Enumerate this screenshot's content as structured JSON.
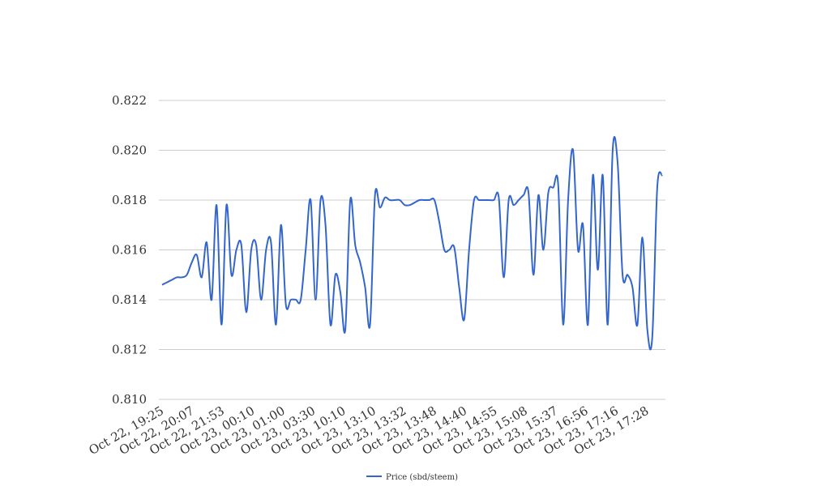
{
  "chart_data": {
    "type": "line",
    "title": "",
    "xlabel": "",
    "ylabel": "",
    "ylim": [
      0.81,
      0.822
    ],
    "yticks": [
      "0.810",
      "0.812",
      "0.814",
      "0.816",
      "0.818",
      "0.820",
      "0.822"
    ],
    "grid": true,
    "legend_position": "bottom",
    "x_tick_labels": [
      "Oct 22, 19:25",
      "Oct 22, 20:07",
      "Oct 22, 21:53",
      "Oct 23, 00:10",
      "Oct 23, 01:00",
      "Oct 23, 03:30",
      "Oct 23, 10:10",
      "Oct 23, 13:10",
      "Oct 23, 13:32",
      "Oct 23, 13:48",
      "Oct 23, 14:40",
      "Oct 23, 14:55",
      "Oct 23, 15:08",
      "Oct 23, 15:37",
      "Oct 23, 16:56",
      "Oct 23, 17:16",
      "Oct 23, 17:28"
    ],
    "series": [
      {
        "name": "Price (sbd/steem)",
        "color": "#3366cc",
        "values": [
          0.8146,
          0.8147,
          0.8148,
          0.8149,
          0.8149,
          0.815,
          0.8155,
          0.8158,
          0.8149,
          0.8163,
          0.814,
          0.8178,
          0.813,
          0.8178,
          0.815,
          0.816,
          0.8162,
          0.8135,
          0.816,
          0.8162,
          0.814,
          0.816,
          0.8163,
          0.813,
          0.817,
          0.8138,
          0.814,
          0.814,
          0.814,
          0.816,
          0.818,
          0.814,
          0.818,
          0.817,
          0.813,
          0.815,
          0.8143,
          0.8128,
          0.818,
          0.8162,
          0.8155,
          0.8145,
          0.813,
          0.8182,
          0.8177,
          0.8181,
          0.818,
          0.818,
          0.818,
          0.8178,
          0.8178,
          0.8179,
          0.818,
          0.818,
          0.818,
          0.818,
          0.8171,
          0.816,
          0.816,
          0.8161,
          0.8145,
          0.8132,
          0.816,
          0.818,
          0.818,
          0.818,
          0.818,
          0.818,
          0.8181,
          0.8149,
          0.818,
          0.8178,
          0.818,
          0.8182,
          0.8183,
          0.815,
          0.8182,
          0.816,
          0.8183,
          0.8185,
          0.8186,
          0.813,
          0.818,
          0.82,
          0.816,
          0.817,
          0.813,
          0.819,
          0.8152,
          0.819,
          0.813,
          0.82,
          0.8195,
          0.815,
          0.815,
          0.8145,
          0.813,
          0.8165,
          0.8128,
          0.8125,
          0.8185,
          0.819
        ]
      }
    ]
  }
}
